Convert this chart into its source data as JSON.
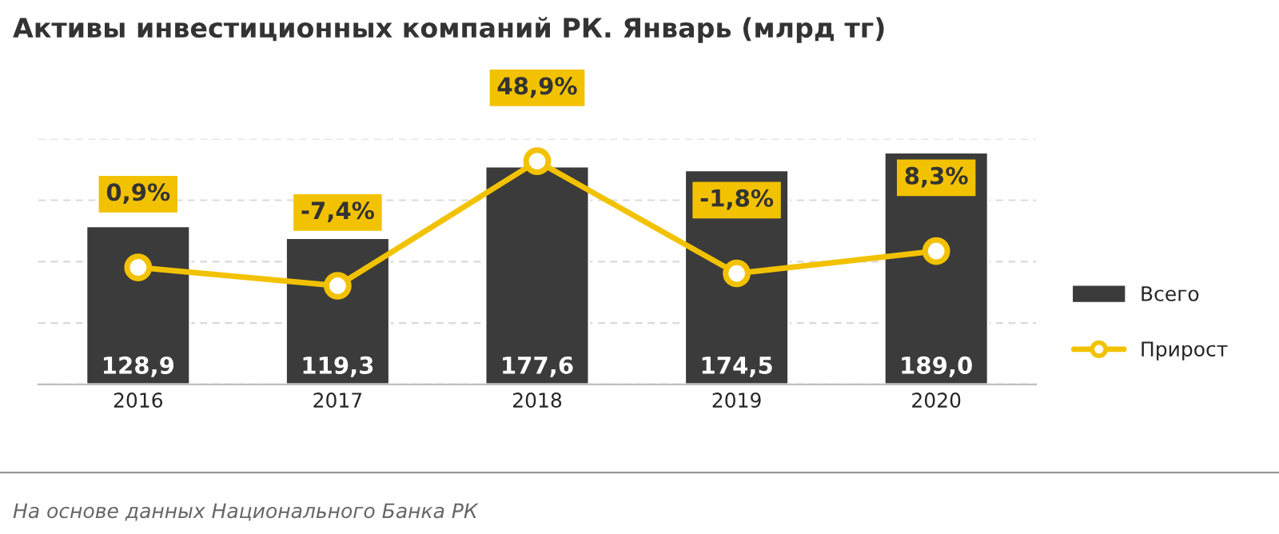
{
  "chart_data": {
    "type": "bar",
    "title": "Активы инвестиционных компаний РК. Январь (млрд тг)",
    "categories": [
      "2016",
      "2017",
      "2018",
      "2019",
      "2020"
    ],
    "series": [
      {
        "name": "Всего",
        "color": "#3b3b3b",
        "values": [
          128.9,
          119.3,
          177.6,
          174.5,
          189.0
        ],
        "value_labels": [
          "128,9",
          "119,3",
          "177,6",
          "174,5",
          "189,0"
        ]
      },
      {
        "name": "Прирост",
        "type": "line",
        "axis": "y2",
        "color": "#f2c200",
        "marker": "circle",
        "line_style": "solid",
        "values": [
          0.9,
          -7.4,
          48.9,
          -1.8,
          8.3
        ],
        "value_labels": [
          "0,9%",
          "-7,4%",
          "48,9%",
          "-1,8%",
          "8,3%"
        ]
      }
    ],
    "ylim": [
      0,
      200
    ],
    "yticks": [
      {
        "value": 0,
        "label": null
      },
      {
        "value": 50,
        "label": null
      },
      {
        "value": 100,
        "label": null
      },
      {
        "value": 150,
        "label": null
      },
      {
        "value": 200,
        "label": null
      }
    ],
    "y2lim": [
      -52,
      59
    ],
    "grid": "y",
    "legend": "right",
    "tick_labels": "x",
    "annotations": [
      "На основе данных Национального Банка РК"
    ]
  }
}
